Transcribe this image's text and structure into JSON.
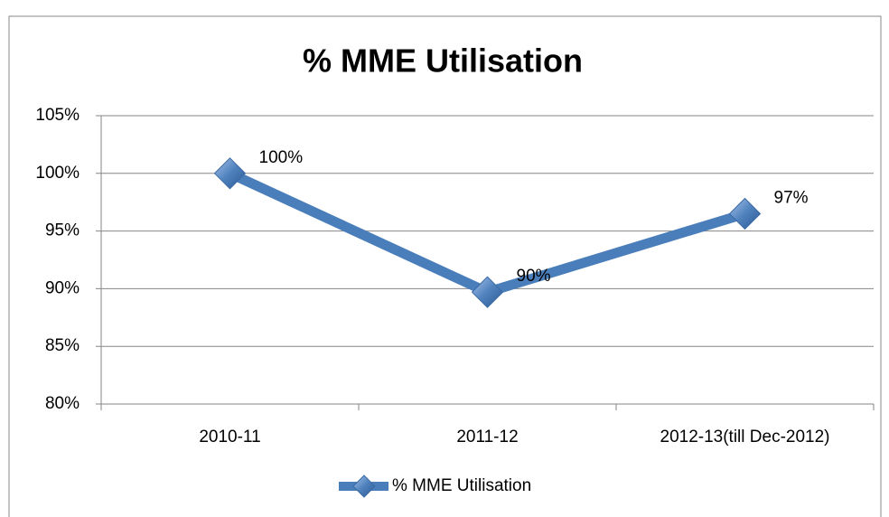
{
  "chart_data": {
    "type": "line",
    "title": "% MME Utilisation",
    "categories": [
      "2010-11",
      "2011-12",
      "2012-13(till Dec-2012)"
    ],
    "series": [
      {
        "name": "% MME Utilisation",
        "color": "#4a7ebb",
        "values": [
          100,
          89.7,
          96.5
        ],
        "value_labels": [
          "100%",
          "90%",
          "97%"
        ]
      }
    ],
    "ylim": [
      80,
      105
    ],
    "yticks": [
      {
        "value": 80,
        "label": "80%"
      },
      {
        "value": 85,
        "label": "85%"
      },
      {
        "value": 90,
        "label": "90%"
      },
      {
        "value": 95,
        "label": "95%"
      },
      {
        "value": 100,
        "label": "100%"
      },
      {
        "value": 105,
        "label": "105%"
      }
    ],
    "grid": true,
    "legend": "bottom"
  }
}
